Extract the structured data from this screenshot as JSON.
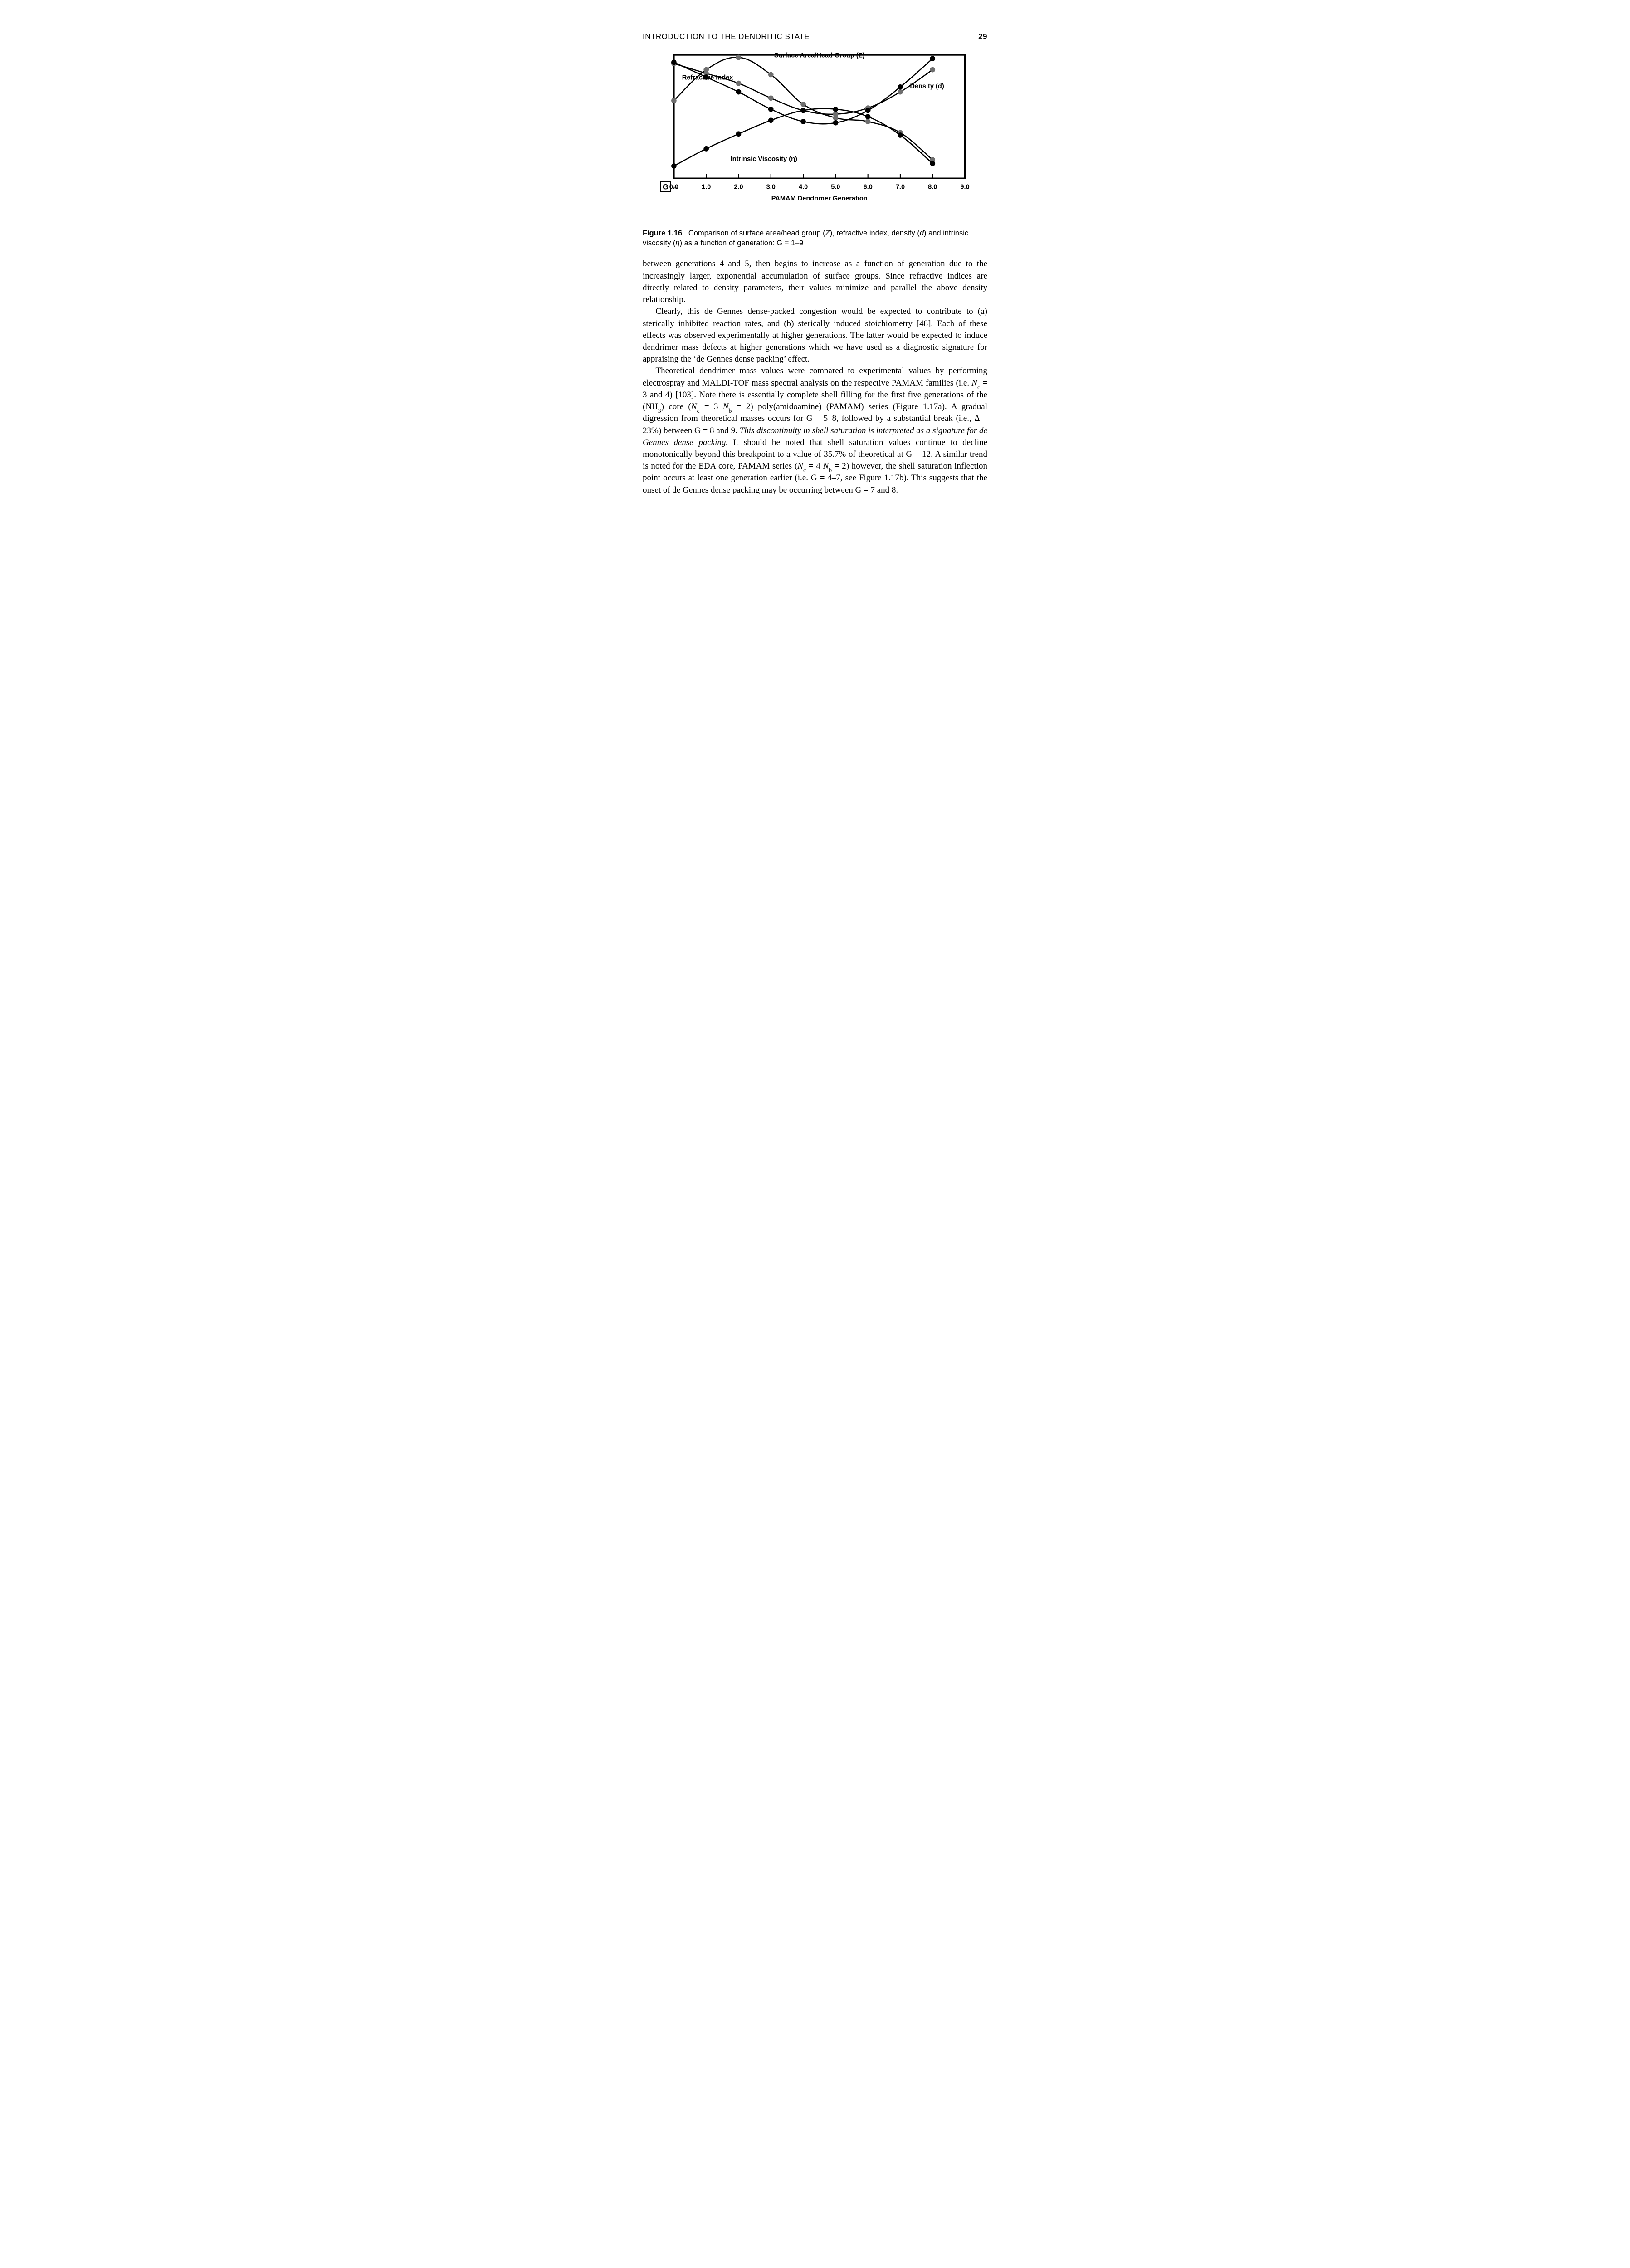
{
  "header": {
    "running_title": "INTRODUCTION TO THE DENDRITIC STATE",
    "page_number": "29"
  },
  "figure": {
    "type": "line",
    "background_color": "#ffffff",
    "border_color": "#000000",
    "border_width": 3.5,
    "xlim": [
      0,
      9
    ],
    "xtick_step": 1.0,
    "xtick_labels": [
      "0.0",
      "1.0",
      "2.0",
      "3.0",
      "4.0",
      "5.0",
      "6.0",
      "7.0",
      "8.0",
      "9.0"
    ],
    "xaxis_title": "PAMAM Dendrimer Generation",
    "g_label": "G",
    "g_equals": "=",
    "line_color": "#000000",
    "line_width": 2.6,
    "marker_style": "circle",
    "marker_size": 5.5,
    "marker_fill_dark": "#000000",
    "marker_fill_light": "#6e6e6e",
    "label_fontsize": 15,
    "label_fontweight": 700,
    "series": {
      "surface_area": {
        "label": "Surface Area/Head Group (Z)",
        "label_pos_x": 3.1,
        "label_pos_y": 0.98,
        "marker_fill": "#6e6e6e",
        "x": [
          0.0,
          1.0,
          2.0,
          3.0,
          4.0,
          5.0,
          6.0,
          7.0,
          8.0
        ],
        "y": [
          0.63,
          0.88,
          0.98,
          0.84,
          0.6,
          0.49,
          0.46,
          0.37,
          0.15
        ]
      },
      "refractive_index": {
        "label": "Refractive Index",
        "label_pos_x": 0.25,
        "label_pos_y": 0.8,
        "marker_fill": "#6e6e6e",
        "x": [
          0.0,
          1.0,
          2.0,
          3.0,
          4.0,
          5.0,
          6.0,
          7.0,
          8.0
        ],
        "y": [
          0.93,
          0.85,
          0.77,
          0.65,
          0.55,
          0.52,
          0.57,
          0.7,
          0.88
        ]
      },
      "density": {
        "label": "Density (d)",
        "label_pos_x": 7.3,
        "label_pos_y": 0.73,
        "marker_fill": "#000000",
        "x": [
          0.0,
          1.0,
          2.0,
          3.0,
          4.0,
          5.0,
          6.0,
          7.0,
          8.0
        ],
        "y": [
          0.94,
          0.82,
          0.7,
          0.56,
          0.46,
          0.45,
          0.55,
          0.74,
          0.97
        ]
      },
      "intrinsic_viscosity": {
        "label": "Intrinsic Viscosity (η)",
        "label_pos_x": 1.75,
        "label_pos_y": 0.14,
        "marker_fill": "#000000",
        "x": [
          0.0,
          1.0,
          2.0,
          3.0,
          4.0,
          5.0,
          6.0,
          7.0,
          8.0
        ],
        "y": [
          0.1,
          0.24,
          0.36,
          0.47,
          0.55,
          0.56,
          0.5,
          0.35,
          0.12
        ]
      }
    },
    "caption": {
      "fignum": "Figure 1.16",
      "text_before_Z": "Comparison of surface area/head group (",
      "Z": "Z",
      "text_after_Z": "), refractive index, den­sity (",
      "d": "d",
      "text_after_d": ") and intrinsic viscosity (",
      "eta": "η",
      "text_after_eta": ") as a function of generation: G = 1–9"
    }
  },
  "body": {
    "p1": "between generations 4 and 5, then begins to increase as a function of generation due to the increasingly larger, exponential accumulation of surface groups. Since refractive indices are directly related to density parameters, their values minimize and parallel the above density relationship.",
    "p2": "Clearly, this de Gennes dense-packed congestion would be expected to con­tribute to (a) sterically inhibited reaction rates, and (b) sterically induced stoichiometry [48]. Each of these effects was observed experimentally at higher generations. The latter would be expected to induce dendrimer mass defects at higher generations which we have used as a diagnostic signature for appraising the ‘de Gennes dense packing’ effect.",
    "p3_a": "Theoretical dendrimer mass values were compared to experimental values by performing electrospray and MALDI-TOF mass spectral analysis on the re­spective PAMAM families (i.e. ",
    "p3_Nc1": "N",
    "p3_Nc1_sub": "c",
    "p3_b": " = 3 and 4) [103]. Note there is essentially complete shell filling for the first five generations of the (NH",
    "p3_nh3_sub": "3",
    "p3_c": ") core (",
    "p3_Nc2": "N",
    "p3_Nc2_sub": "c",
    "p3_d": " = 3 ",
    "p3_Nb1": "N",
    "p3_Nb1_sub": "b",
    "p3_e": " = 2) poly(amidoamine) (PAMAM) series (Figure 1.17a). A gradual digression from theoretical masses occurs for G = 5–8, followed by a substantial break (i.e., Δ = 23%) between G = 8 and 9. ",
    "p3_ital": "This discontinuity in shell saturation is interpreted as a signature for de Gennes dense packing.",
    "p3_f": " It should be noted that shell saturation values continue to decline monotonically beyond this breakpoint to a value of 35.7% of theoretical at G = 12. A similar trend is noted for the EDA core, PAMAM series (",
    "p3_Nc3": "N",
    "p3_Nc3_sub": "c",
    "p3_g": " = 4 ",
    "p3_Nb2": "N",
    "p3_Nb2_sub": "b",
    "p3_h": " = 2) however, the shell saturation inflection point occurs at least one generation earlier (i.e. G = 4–7, see Figure 1.17b). This suggests that the onset of de Gennes dense packing may be occurring between G = 7 and 8."
  }
}
